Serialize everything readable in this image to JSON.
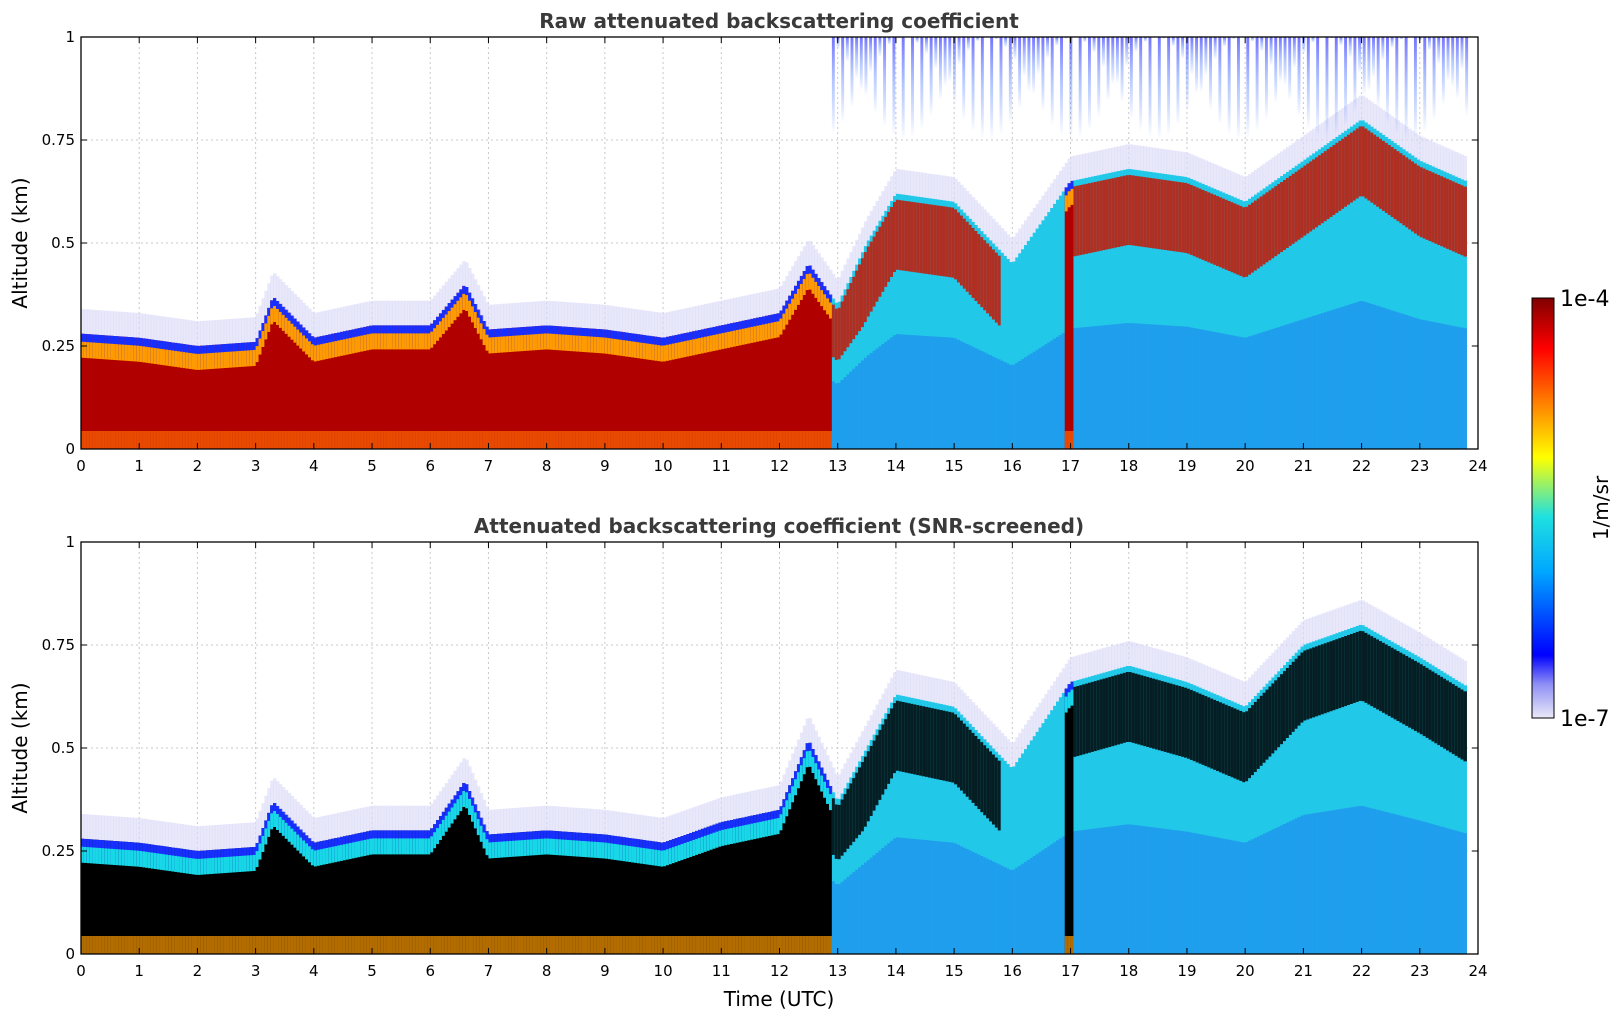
{
  "chart_data": [
    {
      "type": "heatmap",
      "title": "Raw attenuated backscattering coefficient",
      "xlabel": "",
      "ylabel": "Altitude (km)",
      "xlim": [
        0,
        24
      ],
      "ylim": [
        0,
        1
      ],
      "x_ticks": [
        "0",
        "1",
        "2",
        "3",
        "4",
        "5",
        "6",
        "7",
        "8",
        "9",
        "10",
        "11",
        "12",
        "13",
        "14",
        "15",
        "16",
        "17",
        "18",
        "19",
        "20",
        "21",
        "22",
        "23",
        "24"
      ],
      "y_ticks": [
        "0",
        "0.25",
        "0.5",
        "0.75",
        "1"
      ],
      "grid": true,
      "layer_top_km": [
        [
          0,
          0.28
        ],
        [
          1,
          0.27
        ],
        [
          2,
          0.25
        ],
        [
          3,
          0.26
        ],
        [
          3.3,
          0.37
        ],
        [
          4,
          0.27
        ],
        [
          5,
          0.3
        ],
        [
          6,
          0.3
        ],
        [
          6.6,
          0.4
        ],
        [
          7,
          0.29
        ],
        [
          8,
          0.3
        ],
        [
          9,
          0.29
        ],
        [
          10,
          0.27
        ],
        [
          11,
          0.3
        ],
        [
          12,
          0.33
        ],
        [
          12.5,
          0.45
        ],
        [
          13,
          0.35
        ],
        [
          13.5,
          0.5
        ],
        [
          14,
          0.62
        ],
        [
          15,
          0.6
        ],
        [
          16,
          0.45
        ],
        [
          17,
          0.65
        ],
        [
          18,
          0.68
        ],
        [
          19,
          0.66
        ],
        [
          20,
          0.6
        ],
        [
          21,
          0.7
        ],
        [
          22,
          0.8
        ],
        [
          23,
          0.7
        ],
        [
          23.8,
          0.65
        ]
      ],
      "data_end_hour": 23.8
    },
    {
      "type": "heatmap",
      "title": "Attenuated backscattering coefficient (SNR-screened)",
      "xlabel": "Time (UTC)",
      "ylabel": "Altitude (km)",
      "xlim": [
        0,
        24
      ],
      "ylim": [
        0,
        1
      ],
      "x_ticks": [
        "0",
        "1",
        "2",
        "3",
        "4",
        "5",
        "6",
        "7",
        "8",
        "9",
        "10",
        "11",
        "12",
        "13",
        "14",
        "15",
        "16",
        "17",
        "18",
        "19",
        "20",
        "21",
        "22",
        "23",
        "24"
      ],
      "y_ticks": [
        "0",
        "0.25",
        "0.5",
        "0.75",
        "1"
      ],
      "grid": true,
      "layer_top_km": [
        [
          0,
          0.28
        ],
        [
          1,
          0.27
        ],
        [
          2,
          0.25
        ],
        [
          3,
          0.26
        ],
        [
          3.3,
          0.37
        ],
        [
          4,
          0.27
        ],
        [
          5,
          0.3
        ],
        [
          6,
          0.3
        ],
        [
          6.6,
          0.42
        ],
        [
          7,
          0.29
        ],
        [
          8,
          0.3
        ],
        [
          9,
          0.29
        ],
        [
          10,
          0.27
        ],
        [
          11,
          0.32
        ],
        [
          12,
          0.35
        ],
        [
          12.5,
          0.52
        ],
        [
          13,
          0.37
        ],
        [
          13.5,
          0.5
        ],
        [
          14,
          0.63
        ],
        [
          15,
          0.6
        ],
        [
          16,
          0.45
        ],
        [
          17,
          0.66
        ],
        [
          18,
          0.7
        ],
        [
          19,
          0.66
        ],
        [
          20,
          0.6
        ],
        [
          21,
          0.75
        ],
        [
          22,
          0.8
        ],
        [
          23,
          0.72
        ],
        [
          23.8,
          0.65
        ]
      ],
      "data_end_hour": 23.8
    }
  ],
  "colorbar": {
    "min_label": "1e-7",
    "max_label": "1e-4",
    "units": "1/m/sr",
    "colormap": "jet",
    "saturated_color": "#000000"
  }
}
